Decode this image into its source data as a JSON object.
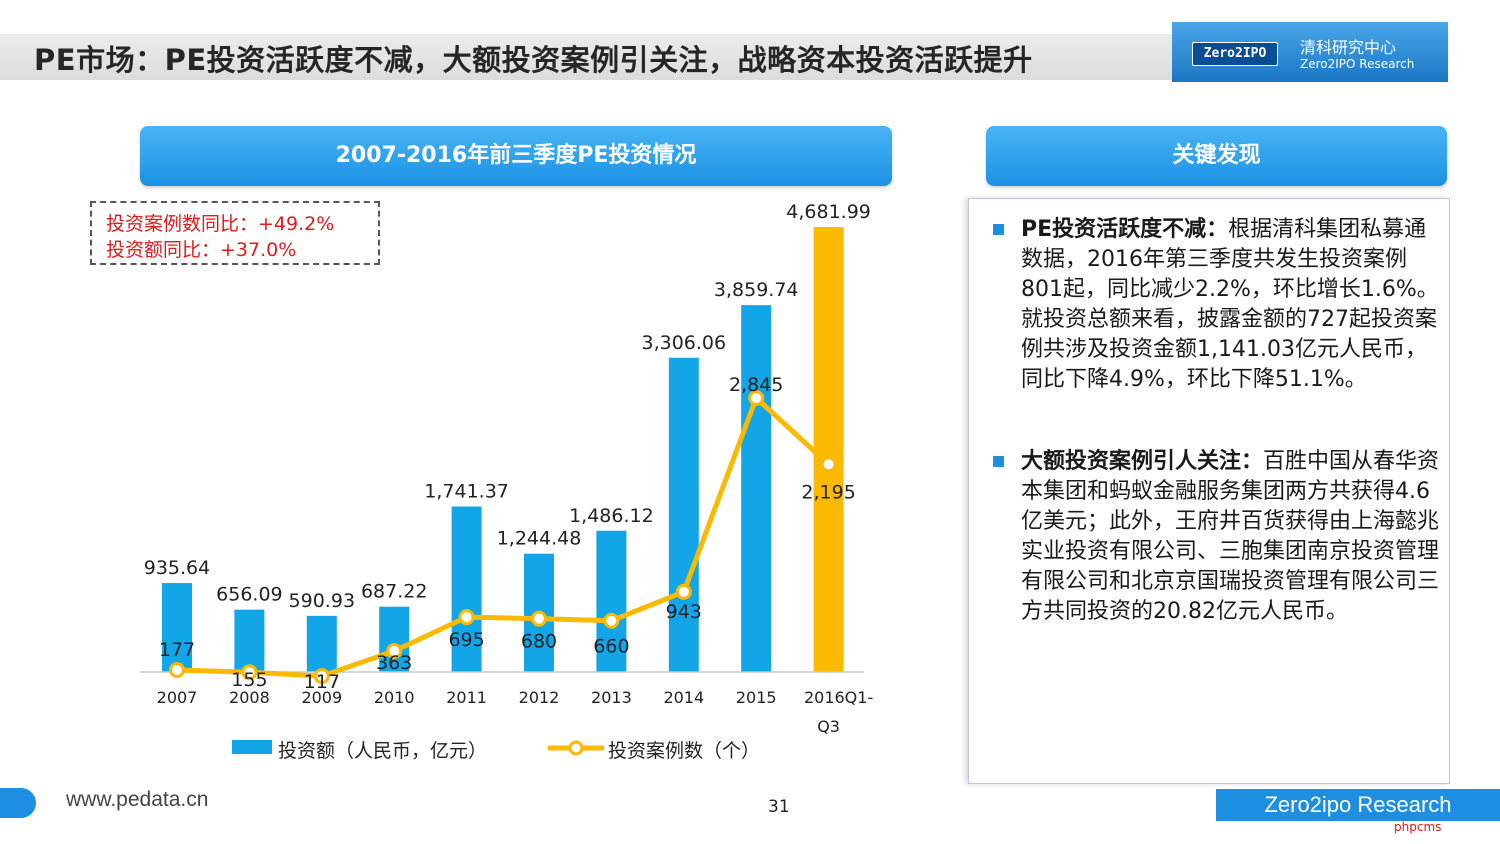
{
  "page_title": "PE市场：PE投资活跃度不减，大额投资案例引关注，战略资本投资活跃提升",
  "logo": {
    "badge": "Zero2IPO",
    "cn": "清科研究中心",
    "en": "Zero2IPO Research"
  },
  "chart_header": "2007-2016年前三季度PE投资情况",
  "findings_header": "关键发现",
  "callout": {
    "line1": "投资案例数同比：+49.2%",
    "line2": "投资额同比：+37.0%"
  },
  "chart_data": {
    "type": "bar",
    "categories": [
      "2007",
      "2008",
      "2009",
      "2010",
      "2011",
      "2012",
      "2013",
      "2014",
      "2015",
      "2016Q1-Q3"
    ],
    "category_labels": [
      [
        "2007"
      ],
      [
        "2008"
      ],
      [
        "2009"
      ],
      [
        "2010"
      ],
      [
        "2011"
      ],
      [
        "2012"
      ],
      [
        "2013"
      ],
      [
        "2014"
      ],
      [
        "2015"
      ],
      [
        "2016Q1-",
        "Q3"
      ]
    ],
    "series": [
      {
        "name": "投资额（人民币，亿元）",
        "kind": "bar",
        "values": [
          935.64,
          656.09,
          590.93,
          687.22,
          1741.37,
          1244.48,
          1486.12,
          3306.06,
          3859.74,
          4681.99
        ],
        "labels": [
          "935.64",
          "656.09",
          "590.93",
          "687.22",
          "1,741.37",
          "1,244.48",
          "1,486.12",
          "3,306.06",
          "3,859.74",
          "4,681.99"
        ]
      },
      {
        "name": "投资案例数（个）",
        "kind": "line",
        "values": [
          177,
          155,
          117,
          363,
          695,
          680,
          660,
          943,
          2845,
          2195
        ],
        "labels": [
          "177",
          "155",
          "117",
          "363",
          "695",
          "680",
          "660",
          "943",
          "2,845",
          "2,195"
        ]
      }
    ],
    "colors": {
      "bar": "#12a5e8",
      "highlight_bar": "#fbb900",
      "line": "#fbb900"
    }
  },
  "findings": [
    {
      "title": "PE投资活跃度不减：",
      "body": "根据清科集团私募通数据，2016年第三季度共发生投资案例801起，同比减少2.2%，环比增长1.6%。就投资总额来看，披露金额的727起投资案例共涉及投资金额1,141.03亿元人民币，同比下降4.9%，环比下降51.1%。"
    },
    {
      "title": "大额投资案例引人关注：",
      "body": "百胜中国从春华资本集团和蚂蚁金融服务集团两方共获得4.6亿美元；此外，王府井百货获得由上海懿兆实业投资有限公司、三胞集团南京投资管理有限公司和北京京国瑞投资管理有限公司三方共同投资的20.82亿元人民币。"
    }
  ],
  "footer": {
    "url": "www.pedata.cn",
    "page": "31",
    "brand": "Zero2ipo Research",
    "watermark": "phpcms"
  }
}
